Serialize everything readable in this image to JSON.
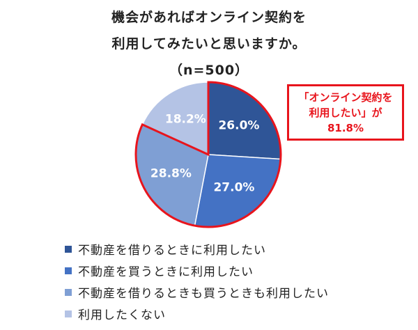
{
  "title": {
    "line1": "機会があればオンライン契約を",
    "line2": "利用してみたいと思いますか。",
    "line3": "（n=500）"
  },
  "callout": {
    "line1": "「オンライン契約を",
    "line2": "利用したい」が",
    "line3": "81.8%",
    "color": "#e8141c"
  },
  "chart_data": {
    "type": "pie",
    "title": "機会があればオンライン契約を利用してみたいと思いますか。（n=500）",
    "unit": "%",
    "start_angle_deg": 0,
    "direction": "clockwise",
    "labels": [
      "不動産を借りるときに利用したい",
      "不動産を買うときに利用したい",
      "不動産を借りるときも買うときも利用したい",
      "利用したくない"
    ],
    "values": [
      26.0,
      27.0,
      28.8,
      18.2
    ],
    "value_labels": [
      "26.0%",
      "27.0%",
      "28.8%",
      "18.2%"
    ],
    "colors": [
      "#2f5597",
      "#4472c4",
      "#7f9fd4",
      "#b4c3e5"
    ],
    "label_colors": [
      "#ffffff",
      "#ffffff",
      "#ffffff",
      "#ffffff"
    ],
    "highlight": {
      "slices": [
        0,
        1,
        2
      ],
      "total_label": "81.8%",
      "outline_color": "#e8141c"
    },
    "legend_position": "bottom-left"
  }
}
